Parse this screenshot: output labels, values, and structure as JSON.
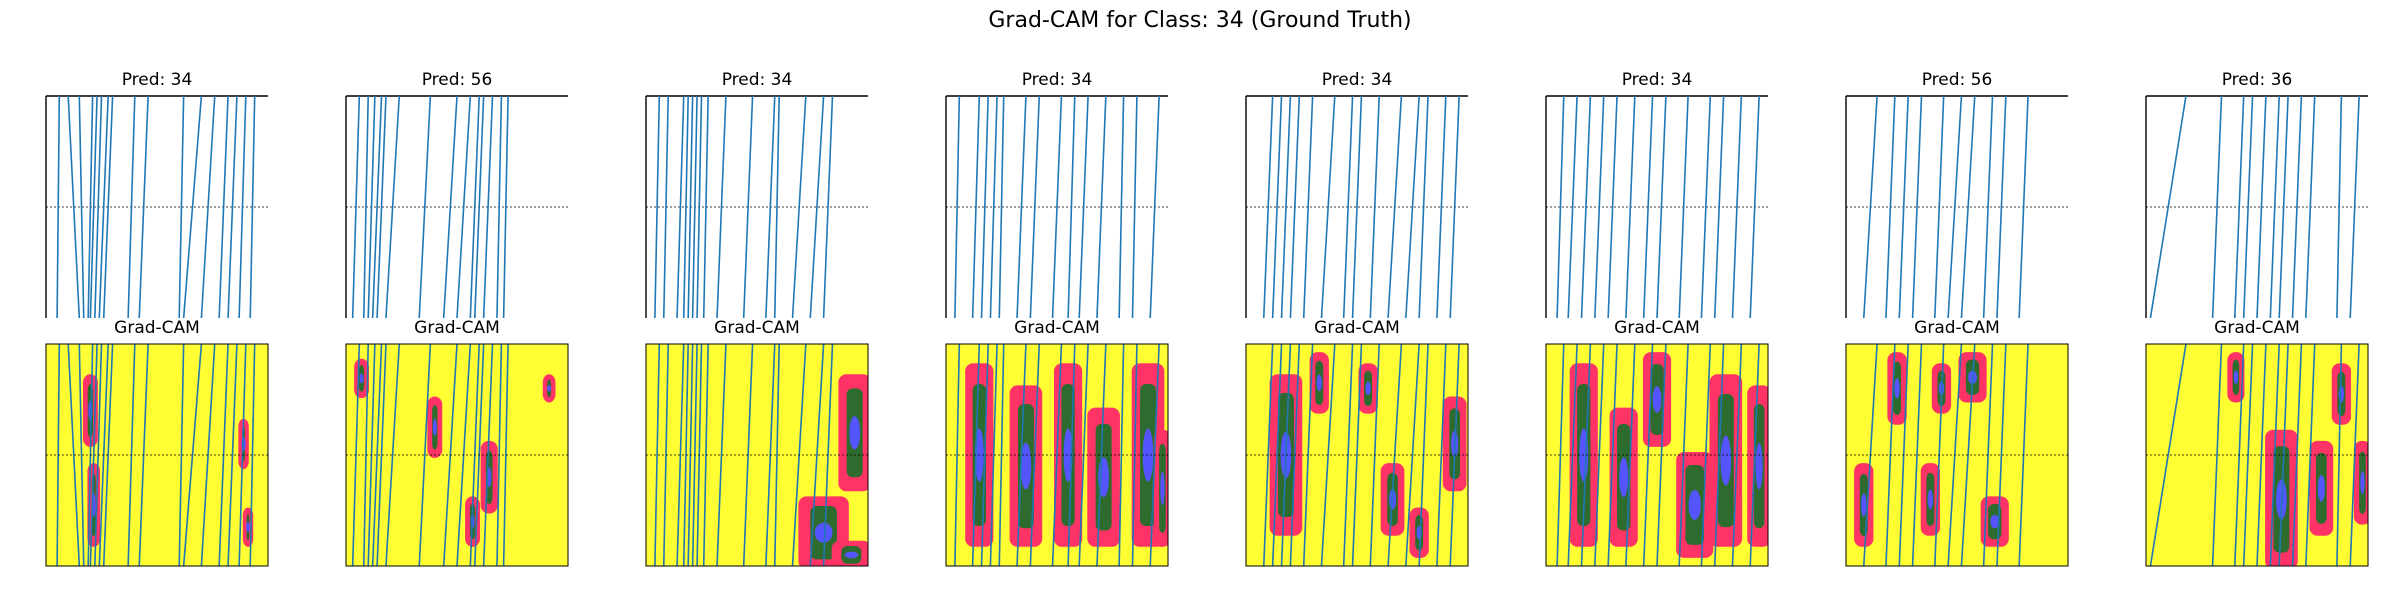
{
  "chart_data": {
    "type": "line",
    "title": "Grad-CAM for Class: 34 (Ground Truth)",
    "heatmap_title": "Grad-CAM",
    "panels": [
      {
        "pred_label": "Pred: 34",
        "lines": [
          [
            0.05,
            0.06
          ],
          [
            0.15,
            0.1
          ],
          [
            0.17,
            0.15
          ],
          [
            0.19,
            0.21
          ],
          [
            0.2,
            0.23
          ],
          [
            0.22,
            0.25
          ],
          [
            0.24,
            0.28
          ],
          [
            0.26,
            0.3
          ],
          [
            0.37,
            0.4
          ],
          [
            0.42,
            0.46
          ],
          [
            0.6,
            0.62
          ],
          [
            0.62,
            0.7
          ],
          [
            0.7,
            0.76
          ],
          [
            0.78,
            0.82
          ],
          [
            0.82,
            0.86
          ],
          [
            0.87,
            0.9
          ],
          [
            0.92,
            0.94
          ]
        ],
        "hotspots": [
          [
            0.18,
            0.15,
            0.04,
            0.3
          ],
          [
            0.2,
            0.55,
            0.03,
            0.35
          ],
          [
            0.88,
            0.35,
            0.02,
            0.2
          ],
          [
            0.9,
            0.75,
            0.02,
            0.15
          ]
        ]
      },
      {
        "pred_label": "Pred: 56",
        "lines": [
          [
            0.03,
            0.06
          ],
          [
            0.08,
            0.1
          ],
          [
            0.1,
            0.13
          ],
          [
            0.12,
            0.16
          ],
          [
            0.14,
            0.18
          ],
          [
            0.18,
            0.24
          ],
          [
            0.33,
            0.38
          ],
          [
            0.44,
            0.5
          ],
          [
            0.5,
            0.56
          ],
          [
            0.56,
            0.6
          ],
          [
            0.58,
            0.62
          ],
          [
            0.62,
            0.66
          ],
          [
            0.68,
            0.7
          ],
          [
            0.71,
            0.73
          ]
        ],
        "hotspots": [
          [
            0.05,
            0.08,
            0.04,
            0.15
          ],
          [
            0.38,
            0.25,
            0.04,
            0.25
          ],
          [
            0.55,
            0.7,
            0.04,
            0.2
          ],
          [
            0.62,
            0.45,
            0.05,
            0.3
          ],
          [
            0.9,
            0.15,
            0.03,
            0.1
          ]
        ]
      },
      {
        "pred_label": "Pred: 34",
        "lines": [
          [
            0.04,
            0.06
          ],
          [
            0.08,
            0.1
          ],
          [
            0.14,
            0.17
          ],
          [
            0.17,
            0.19
          ],
          [
            0.19,
            0.21
          ],
          [
            0.21,
            0.23
          ],
          [
            0.23,
            0.25
          ],
          [
            0.26,
            0.28
          ],
          [
            0.32,
            0.36
          ],
          [
            0.44,
            0.48
          ],
          [
            0.54,
            0.58
          ],
          [
            0.58,
            0.6
          ],
          [
            0.66,
            0.72
          ],
          [
            0.74,
            0.8
          ],
          [
            0.8,
            0.84
          ]
        ],
        "hotspots": [
          [
            0.88,
            0.15,
            0.12,
            0.5
          ],
          [
            0.7,
            0.7,
            0.2,
            0.3
          ],
          [
            0.85,
            0.9,
            0.15,
            0.1
          ]
        ]
      },
      {
        "pred_label": "Pred: 34",
        "lines": [
          [
            0.04,
            0.06
          ],
          [
            0.12,
            0.15
          ],
          [
            0.16,
            0.19
          ],
          [
            0.2,
            0.23
          ],
          [
            0.24,
            0.26
          ],
          [
            0.32,
            0.36
          ],
          [
            0.38,
            0.42
          ],
          [
            0.48,
            0.52
          ],
          [
            0.55,
            0.58
          ],
          [
            0.6,
            0.64
          ],
          [
            0.68,
            0.72
          ],
          [
            0.78,
            0.8
          ],
          [
            0.84,
            0.86
          ],
          [
            0.92,
            0.96
          ]
        ],
        "hotspots": [
          [
            0.1,
            0.1,
            0.1,
            0.8
          ],
          [
            0.3,
            0.2,
            0.12,
            0.7
          ],
          [
            0.5,
            0.1,
            0.1,
            0.8
          ],
          [
            0.65,
            0.3,
            0.12,
            0.6
          ],
          [
            0.85,
            0.1,
            0.12,
            0.8
          ],
          [
            0.95,
            0.4,
            0.05,
            0.5
          ]
        ]
      },
      {
        "pred_label": "Pred: 34",
        "lines": [
          [
            0.08,
            0.12
          ],
          [
            0.12,
            0.16
          ],
          [
            0.16,
            0.2
          ],
          [
            0.2,
            0.24
          ],
          [
            0.26,
            0.3
          ],
          [
            0.34,
            0.4
          ],
          [
            0.44,
            0.48
          ],
          [
            0.48,
            0.52
          ],
          [
            0.56,
            0.6
          ],
          [
            0.64,
            0.7
          ],
          [
            0.72,
            0.78
          ],
          [
            0.78,
            0.82
          ],
          [
            0.86,
            0.9
          ],
          [
            0.92,
            0.96
          ]
        ],
        "hotspots": [
          [
            0.12,
            0.15,
            0.12,
            0.7
          ],
          [
            0.3,
            0.05,
            0.06,
            0.25
          ],
          [
            0.52,
            0.1,
            0.06,
            0.2
          ],
          [
            0.62,
            0.55,
            0.08,
            0.3
          ],
          [
            0.9,
            0.25,
            0.08,
            0.4
          ],
          [
            0.75,
            0.75,
            0.06,
            0.2
          ]
        ]
      },
      {
        "pred_label": "Pred: 34",
        "lines": [
          [
            0.05,
            0.08
          ],
          [
            0.1,
            0.14
          ],
          [
            0.16,
            0.2
          ],
          [
            0.22,
            0.26
          ],
          [
            0.28,
            0.32
          ],
          [
            0.36,
            0.4
          ],
          [
            0.44,
            0.48
          ],
          [
            0.5,
            0.54
          ],
          [
            0.6,
            0.64
          ],
          [
            0.7,
            0.74
          ],
          [
            0.76,
            0.8
          ],
          [
            0.84,
            0.88
          ],
          [
            0.92,
            0.96
          ]
        ],
        "hotspots": [
          [
            0.12,
            0.1,
            0.1,
            0.8
          ],
          [
            0.3,
            0.3,
            0.1,
            0.6
          ],
          [
            0.45,
            0.05,
            0.1,
            0.4
          ],
          [
            0.6,
            0.5,
            0.14,
            0.45
          ],
          [
            0.75,
            0.15,
            0.12,
            0.75
          ],
          [
            0.92,
            0.2,
            0.08,
            0.7
          ]
        ]
      },
      {
        "pred_label": "Pred: 56",
        "lines": [
          [
            0.08,
            0.14
          ],
          [
            0.18,
            0.22
          ],
          [
            0.24,
            0.28
          ],
          [
            0.3,
            0.34
          ],
          [
            0.4,
            0.44
          ],
          [
            0.46,
            0.52
          ],
          [
            0.52,
            0.58
          ],
          [
            0.62,
            0.66
          ],
          [
            0.68,
            0.72
          ],
          [
            0.78,
            0.82
          ]
        ],
        "hotspots": [
          [
            0.05,
            0.55,
            0.06,
            0.35
          ],
          [
            0.2,
            0.05,
            0.06,
            0.3
          ],
          [
            0.4,
            0.1,
            0.06,
            0.2
          ],
          [
            0.52,
            0.05,
            0.1,
            0.2
          ],
          [
            0.62,
            0.7,
            0.1,
            0.2
          ],
          [
            0.35,
            0.55,
            0.06,
            0.3
          ]
        ]
      },
      {
        "pred_label": "Pred: 36",
        "lines": [
          [
            0.02,
            0.18
          ],
          [
            0.3,
            0.34
          ],
          [
            0.4,
            0.44
          ],
          [
            0.44,
            0.48
          ],
          [
            0.5,
            0.54
          ],
          [
            0.56,
            0.6
          ],
          [
            0.6,
            0.64
          ],
          [
            0.66,
            0.7
          ],
          [
            0.72,
            0.76
          ],
          [
            0.86,
            0.88
          ],
          [
            0.92,
            0.96
          ]
        ],
        "hotspots": [
          [
            0.38,
            0.05,
            0.05,
            0.2
          ],
          [
            0.55,
            0.4,
            0.12,
            0.6
          ],
          [
            0.75,
            0.45,
            0.08,
            0.4
          ],
          [
            0.85,
            0.1,
            0.06,
            0.25
          ],
          [
            0.95,
            0.45,
            0.05,
            0.35
          ]
        ]
      }
    ]
  }
}
